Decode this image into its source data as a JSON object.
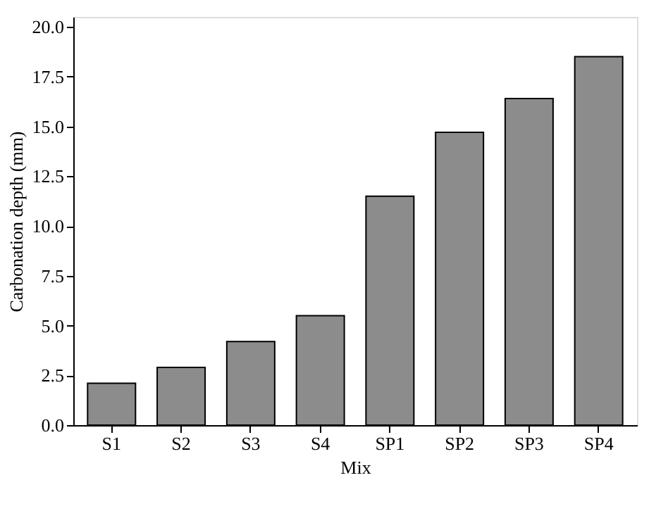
{
  "chart_data": {
    "type": "bar",
    "xlabel": "Mix",
    "ylabel": "Carbonation depth (mm)",
    "categories": [
      "S1",
      "S2",
      "S3",
      "S4",
      "SP1",
      "SP2",
      "SP3",
      "SP4"
    ],
    "values": [
      2.1,
      2.9,
      4.2,
      5.5,
      11.5,
      14.7,
      16.4,
      18.5
    ],
    "color": "#8c8c8c",
    "ylim": [
      0,
      20.5
    ],
    "yticks": [
      {
        "value": 0,
        "label": "0.0"
      },
      {
        "value": 2.5,
        "label": "2.5"
      },
      {
        "value": 5,
        "label": "5.0"
      },
      {
        "value": 7.5,
        "label": "7.5"
      },
      {
        "value": 10,
        "label": "10.0"
      },
      {
        "value": 12.5,
        "label": "12.5"
      },
      {
        "value": 15,
        "label": "15.0"
      },
      {
        "value": 17.5,
        "label": "17.5"
      },
      {
        "value": 20,
        "label": "20.0"
      }
    ],
    "grid": false
  }
}
